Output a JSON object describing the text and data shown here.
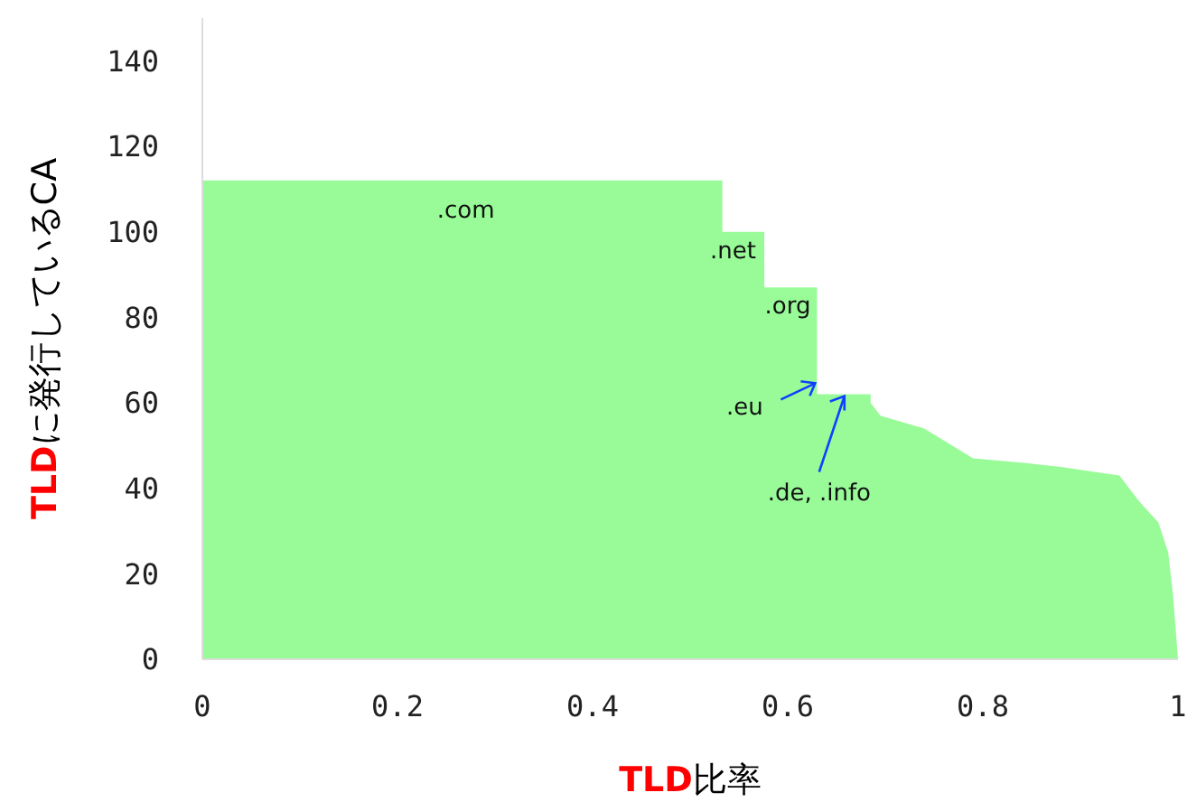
{
  "chart_data": {
    "type": "area",
    "xlabel": "TLD比率",
    "ylabel": "TLDに発行しているCA",
    "x": [
      0,
      0.533,
      0.533,
      0.576,
      0.576,
      0.63,
      0.63,
      0.685,
      0.685,
      0.695,
      0.74,
      0.79,
      0.84,
      0.88,
      0.94,
      0.96,
      0.98,
      0.99,
      0.995,
      1
    ],
    "series": [
      {
        "color": "#98fb98",
        "values": [
          112,
          112,
          100,
          100,
          87,
          87,
          62,
          62,
          60,
          57,
          54,
          47,
          46,
          45,
          43,
          37,
          32,
          25,
          15,
          0
        ]
      }
    ],
    "xlim": [
      0,
      1
    ],
    "xticks": [
      0,
      0.2,
      0.4,
      0.6,
      0.8,
      1
    ],
    "ylim": [
      0,
      150
    ],
    "yticks": [
      0,
      20,
      40,
      60,
      80,
      100,
      120,
      140
    ],
    "grid": false,
    "legend": false,
    "annotations": [
      {
        "text": ".com",
        "x": 0.27,
        "y": 112
      },
      {
        "text": ".net",
        "x": 0.555,
        "y": 100
      },
      {
        "text": ".org",
        "x": 0.6,
        "y": 87
      },
      {
        "text": ".eu",
        "x": 0.63,
        "y": 65
      },
      {
        "text": ".de, .info",
        "x": 0.66,
        "y": 62
      }
    ]
  }
}
